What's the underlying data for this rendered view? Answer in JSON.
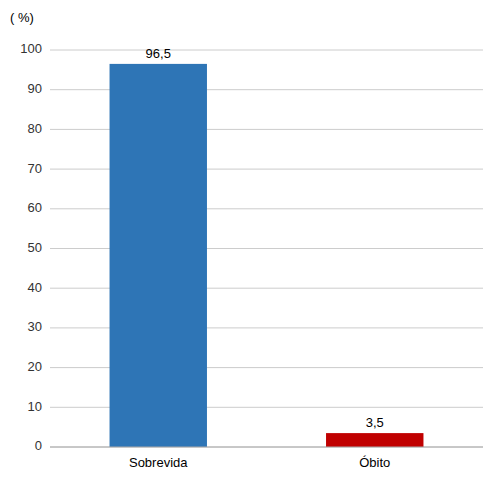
{
  "chart_data": {
    "type": "bar",
    "y_label": "( %)",
    "categories": [
      "Sobrevida",
      "Óbito"
    ],
    "values": [
      96.5,
      3.5
    ],
    "value_labels": [
      "96,5",
      "3,5"
    ],
    "colors": [
      "#2e75b6",
      "#c00000"
    ],
    "ylim": [
      0,
      100
    ],
    "yticks": [
      0,
      10,
      20,
      30,
      40,
      50,
      60,
      70,
      80,
      90,
      100
    ],
    "grid": true,
    "data_labels": true
  }
}
